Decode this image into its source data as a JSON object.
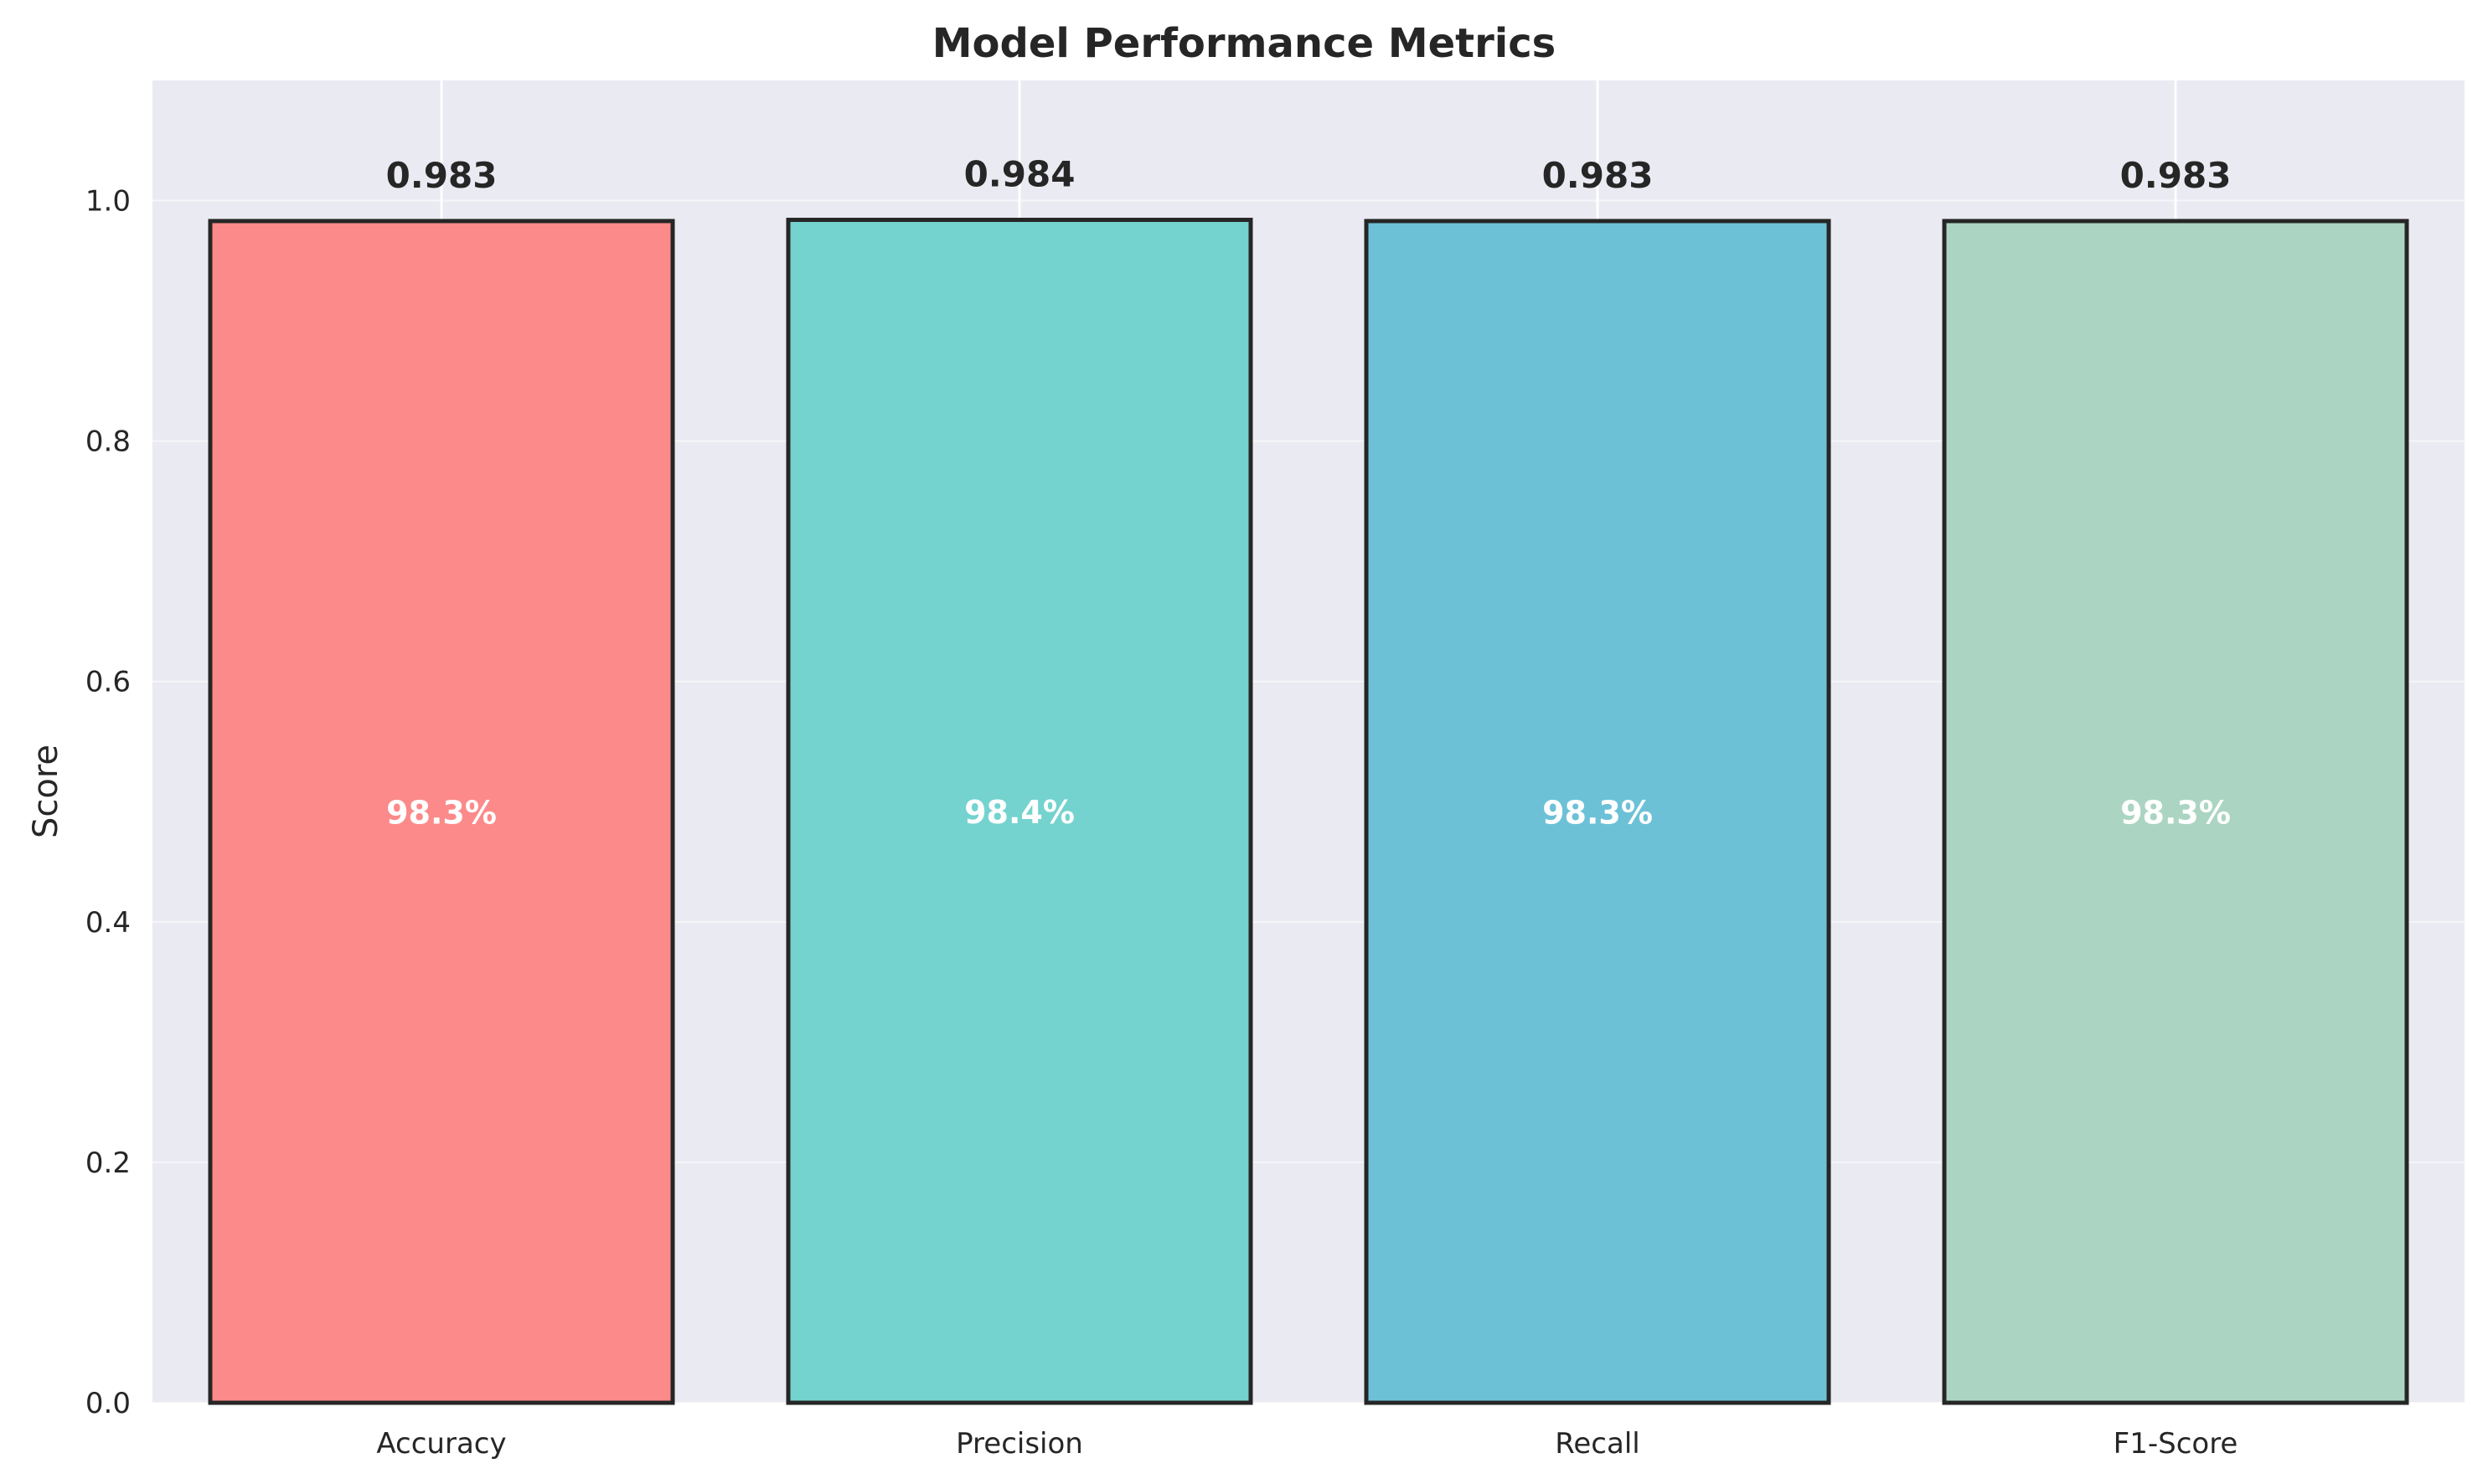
{
  "chart_data": {
    "type": "bar",
    "title": "Model Performance Metrics",
    "xlabel": "",
    "ylabel": "Score",
    "categories": [
      "Accuracy",
      "Precision",
      "Recall",
      "F1-Score"
    ],
    "values": [
      0.983,
      0.984,
      0.983,
      0.983
    ],
    "value_labels": [
      "0.983",
      "0.984",
      "0.983",
      "0.983"
    ],
    "percent_labels": [
      "98.3%",
      "98.4%",
      "98.3%",
      "98.3%"
    ],
    "ylim": [
      0,
      1.1
    ],
    "yticks": [
      0.0,
      0.2,
      0.4,
      0.6,
      0.8,
      1.0
    ],
    "ytick_labels": [
      "0.0",
      "0.2",
      "0.4",
      "0.6",
      "0.8",
      "1.0"
    ],
    "grid": true,
    "colors": [
      "#FC8585",
      "#6ED1CC",
      "#66BED5",
      "#A8D3C0"
    ],
    "edge_color": "#262626",
    "background_color": "#EAEAF2",
    "grid_color": "#FFFFFF"
  }
}
